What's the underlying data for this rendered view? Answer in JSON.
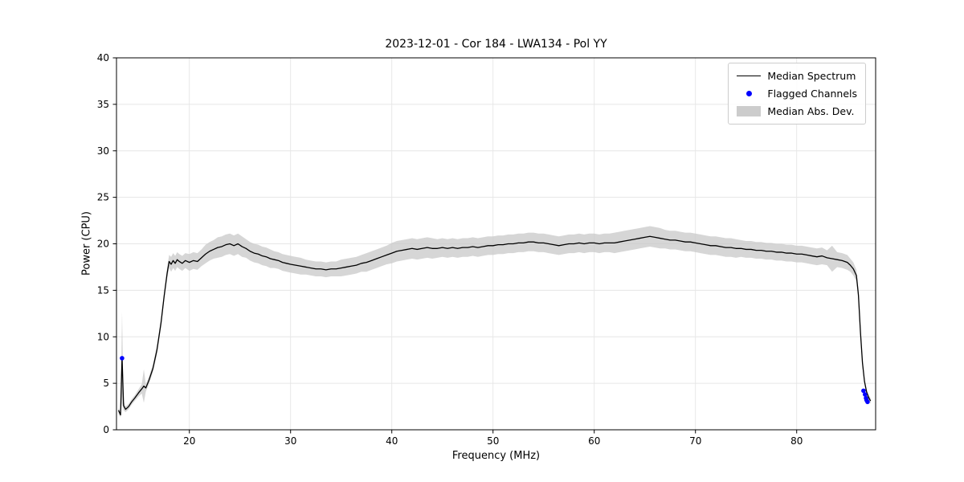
{
  "figure": {
    "title": "2023-12-01 - Cor 184 - LWA134 - Pol YY",
    "xlabel": "Frequency (MHz)",
    "ylabel": "Power (CPU)"
  },
  "legend": {
    "items": [
      {
        "label": "Median Spectrum",
        "type": "line",
        "color": "#000000"
      },
      {
        "label": "Flagged Channels",
        "type": "dot",
        "color": "#0000ff"
      },
      {
        "label": "Median Abs. Dev.",
        "type": "patch",
        "color": "#cccccc"
      }
    ]
  },
  "chart_data": {
    "type": "line",
    "title": "2023-12-01 - Cor 184 - LWA134 - Pol YY",
    "xlabel": "Frequency (MHz)",
    "ylabel": "Power (CPU)",
    "xlim": [
      12.8,
      87.8
    ],
    "ylim": [
      0,
      40
    ],
    "xticks": [
      20,
      30,
      40,
      50,
      60,
      70,
      80
    ],
    "yticks": [
      0,
      5,
      10,
      15,
      20,
      25,
      30,
      35,
      40
    ],
    "grid": true,
    "legend_position": "upper right",
    "colors": {
      "line": "#000000",
      "band": "#c8c8c8",
      "flagged": "#0000ff",
      "grid": "#e6e6e6",
      "spine": "#000000"
    },
    "series": [
      {
        "name": "Median Spectrum",
        "x": [
          13.0,
          13.2,
          13.35,
          13.5,
          13.7,
          14.0,
          14.3,
          14.6,
          15.0,
          15.3,
          15.5,
          15.7,
          16.0,
          16.4,
          16.8,
          17.2,
          17.5,
          17.8,
          18.0,
          18.2,
          18.4,
          18.6,
          18.8,
          19.0,
          19.3,
          19.6,
          20.0,
          20.4,
          20.8,
          21.2,
          21.6,
          22.0,
          22.4,
          22.8,
          23.2,
          23.6,
          24.0,
          24.4,
          24.8,
          25.2,
          25.6,
          26.0,
          26.4,
          26.8,
          27.2,
          27.6,
          28.0,
          28.4,
          28.8,
          29.2,
          29.6,
          30.0,
          30.5,
          31.0,
          31.5,
          32.0,
          32.5,
          33.0,
          33.5,
          34.0,
          34.5,
          35.0,
          35.5,
          36.0,
          36.5,
          37.0,
          37.5,
          38.0,
          38.5,
          39.0,
          39.5,
          40.0,
          40.5,
          41.0,
          41.5,
          42.0,
          42.5,
          43.0,
          43.5,
          44.0,
          44.5,
          45.0,
          45.5,
          46.0,
          46.5,
          47.0,
          47.5,
          48.0,
          48.5,
          49.0,
          49.5,
          50.0,
          50.5,
          51.0,
          51.5,
          52.0,
          52.5,
          53.0,
          53.5,
          54.0,
          54.5,
          55.0,
          55.5,
          56.0,
          56.5,
          57.0,
          57.5,
          58.0,
          58.5,
          59.0,
          59.5,
          60.0,
          60.5,
          61.0,
          61.5,
          62.0,
          62.5,
          63.0,
          63.5,
          64.0,
          64.5,
          65.0,
          65.5,
          66.0,
          66.5,
          67.0,
          67.5,
          68.0,
          68.5,
          69.0,
          69.5,
          70.0,
          70.5,
          71.0,
          71.5,
          72.0,
          72.5,
          73.0,
          73.5,
          74.0,
          74.5,
          75.0,
          75.5,
          76.0,
          76.5,
          77.0,
          77.5,
          78.0,
          78.5,
          79.0,
          79.5,
          80.0,
          80.5,
          81.0,
          81.5,
          82.0,
          82.5,
          83.0,
          83.5,
          84.0,
          84.5,
          85.0,
          85.3,
          85.6,
          85.9,
          86.1,
          86.3,
          86.5,
          86.7,
          86.9,
          87.1,
          87.3
        ],
        "y": [
          2.1,
          1.6,
          7.8,
          2.6,
          2.2,
          2.5,
          3.0,
          3.4,
          4.0,
          4.4,
          4.7,
          4.5,
          5.3,
          6.6,
          8.6,
          11.5,
          14.3,
          16.8,
          18.1,
          17.8,
          18.2,
          17.9,
          18.3,
          18.1,
          17.9,
          18.2,
          18.0,
          18.2,
          18.1,
          18.5,
          18.9,
          19.2,
          19.4,
          19.6,
          19.7,
          19.9,
          20.0,
          19.8,
          20.0,
          19.7,
          19.5,
          19.2,
          19.0,
          18.9,
          18.7,
          18.6,
          18.4,
          18.3,
          18.2,
          18.0,
          17.9,
          17.8,
          17.7,
          17.6,
          17.5,
          17.4,
          17.3,
          17.3,
          17.2,
          17.3,
          17.3,
          17.4,
          17.5,
          17.6,
          17.7,
          17.9,
          18.0,
          18.2,
          18.4,
          18.6,
          18.8,
          19.0,
          19.2,
          19.3,
          19.4,
          19.5,
          19.4,
          19.5,
          19.6,
          19.5,
          19.5,
          19.6,
          19.5,
          19.6,
          19.5,
          19.6,
          19.6,
          19.7,
          19.6,
          19.7,
          19.8,
          19.8,
          19.9,
          19.9,
          20.0,
          20.0,
          20.1,
          20.1,
          20.2,
          20.2,
          20.1,
          20.1,
          20.0,
          19.9,
          19.8,
          19.9,
          20.0,
          20.0,
          20.1,
          20.0,
          20.1,
          20.1,
          20.0,
          20.1,
          20.1,
          20.1,
          20.2,
          20.3,
          20.4,
          20.5,
          20.6,
          20.7,
          20.8,
          20.7,
          20.6,
          20.5,
          20.4,
          20.4,
          20.3,
          20.2,
          20.2,
          20.1,
          20.0,
          19.9,
          19.8,
          19.8,
          19.7,
          19.6,
          19.6,
          19.5,
          19.5,
          19.4,
          19.4,
          19.3,
          19.3,
          19.2,
          19.2,
          19.1,
          19.1,
          19.0,
          19.0,
          18.9,
          18.9,
          18.8,
          18.7,
          18.6,
          18.7,
          18.5,
          18.4,
          18.3,
          18.2,
          18.0,
          17.7,
          17.3,
          16.6,
          14.5,
          10.5,
          7.2,
          5.2,
          4.1,
          3.5,
          3.1
        ]
      },
      {
        "name": "Median Abs. Dev.",
        "band_halfwidth": [
          0.3,
          0.3,
          4.9,
          0.5,
          0.3,
          0.3,
          0.3,
          0.3,
          0.4,
          0.5,
          1.8,
          0.4,
          0.4,
          0.4,
          0.5,
          0.5,
          0.5,
          0.6,
          0.7,
          0.8,
          0.8,
          0.8,
          0.8,
          0.8,
          0.8,
          0.8,
          0.9,
          0.9,
          0.9,
          0.9,
          1.0,
          1.0,
          1.0,
          1.1,
          1.1,
          1.1,
          1.1,
          1.1,
          1.1,
          1.1,
          1.0,
          1.0,
          1.0,
          1.0,
          1.0,
          1.0,
          1.0,
          0.9,
          0.9,
          0.9,
          0.9,
          0.9,
          0.9,
          0.9,
          0.8,
          0.8,
          0.8,
          0.8,
          0.8,
          0.8,
          0.8,
          0.9,
          0.9,
          0.9,
          0.9,
          0.9,
          1.0,
          1.0,
          1.0,
          1.0,
          1.0,
          1.1,
          1.1,
          1.1,
          1.1,
          1.1,
          1.1,
          1.1,
          1.1,
          1.1,
          1.0,
          1.0,
          1.0,
          1.0,
          1.0,
          1.0,
          1.0,
          1.0,
          1.0,
          1.0,
          1.0,
          1.0,
          1.0,
          1.0,
          1.0,
          1.0,
          1.0,
          1.0,
          1.0,
          1.0,
          1.0,
          1.0,
          1.0,
          1.0,
          1.0,
          1.0,
          1.0,
          1.0,
          1.0,
          1.0,
          1.0,
          1.0,
          1.0,
          1.0,
          1.0,
          1.1,
          1.1,
          1.1,
          1.1,
          1.1,
          1.1,
          1.1,
          1.1,
          1.1,
          1.1,
          1.0,
          1.0,
          1.0,
          1.0,
          1.0,
          1.0,
          1.0,
          1.0,
          1.0,
          1.0,
          1.0,
          1.0,
          1.0,
          1.0,
          1.0,
          0.9,
          0.9,
          0.9,
          0.9,
          0.9,
          0.9,
          0.9,
          0.9,
          0.9,
          0.9,
          0.9,
          0.9,
          0.9,
          0.9,
          0.9,
          0.9,
          0.9,
          0.8,
          1.4,
          0.8,
          0.8,
          0.8,
          0.7,
          0.7,
          0.6,
          0.6,
          0.5,
          0.4,
          0.3,
          0.3,
          0.3,
          0.3
        ]
      },
      {
        "name": "Flagged Channels",
        "points": [
          [
            13.35,
            7.7
          ],
          [
            86.6,
            4.2
          ],
          [
            86.75,
            3.8
          ],
          [
            86.85,
            3.4
          ],
          [
            86.9,
            3.2
          ],
          [
            87.0,
            3.0
          ]
        ]
      }
    ]
  }
}
